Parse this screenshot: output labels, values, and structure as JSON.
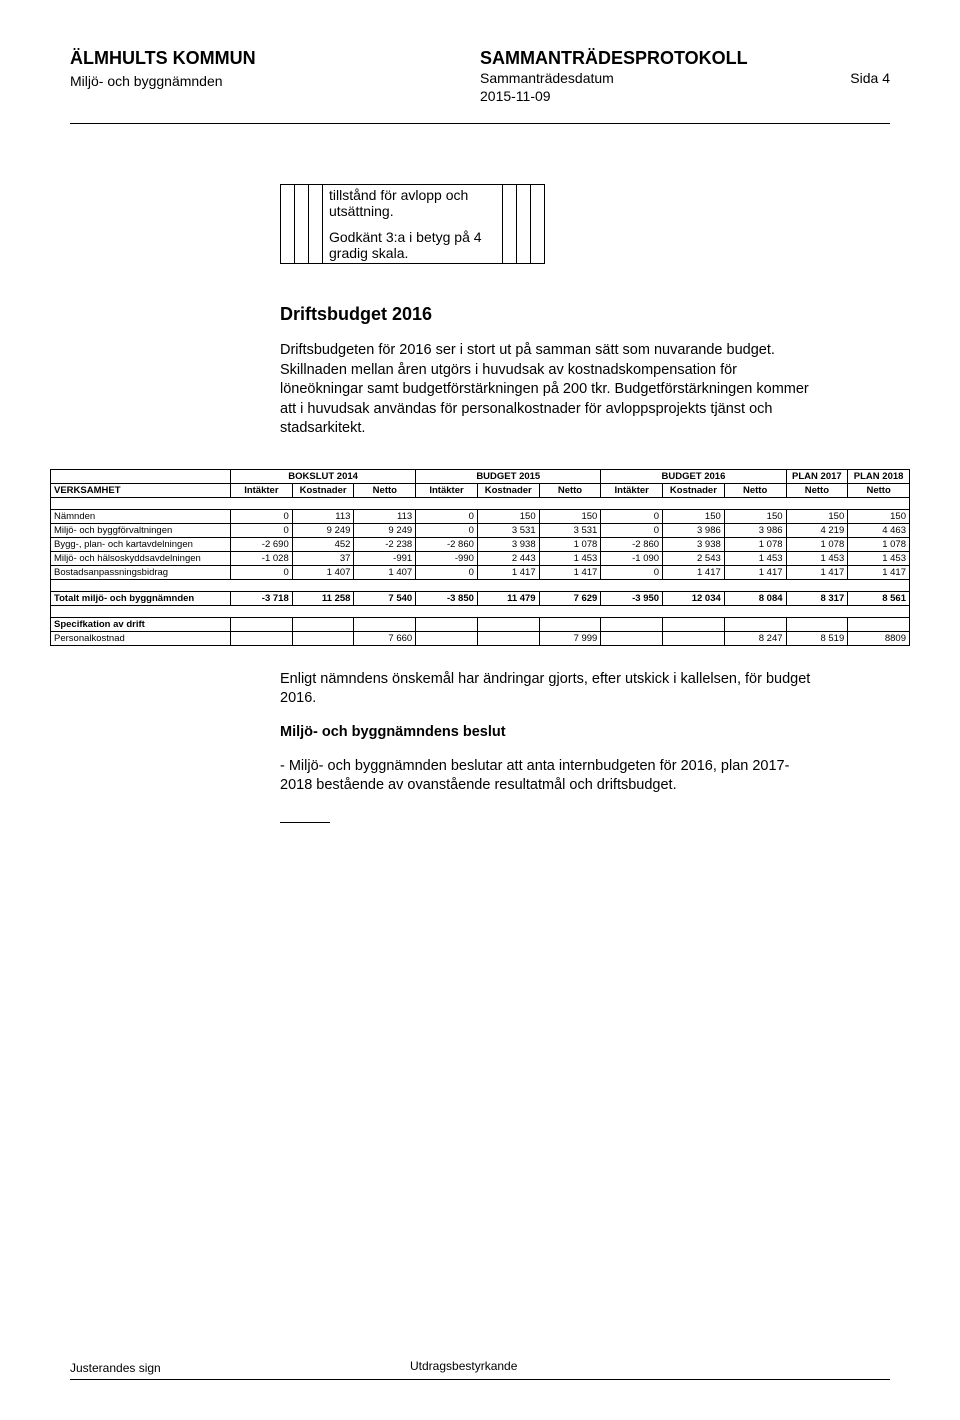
{
  "header": {
    "org": "ÄLMHULTS KOMMUN",
    "protokoll": "SAMMANTRÄDESPROTOKOLL",
    "sub": "Sammanträdesdatum",
    "sida_label": "Sida",
    "sida_num": "4",
    "committee": "Miljö- och byggnämnden",
    "date": "2015-11-09"
  },
  "mini": {
    "line1": "tillstånd för avlopp och utsättning.",
    "line2": "Godkänt 3:a i betyg på 4 gradig skala."
  },
  "section": {
    "title": "Driftsbudget 2016",
    "para": "Driftsbudgeten för 2016 ser i stort ut på samman sätt som nuvarande budget. Skillnaden mellan åren utgörs i huvudsak av kostnadskompensation för löneökningar samt budgetförstärkningen på 200 tkr. Budgetförstärkningen kommer att i huvudsak användas för personalkostnader för avloppsprojekts tjänst och stadsarkitekt."
  },
  "budget": {
    "group_headers": [
      "BOKSLUT 2014",
      "BUDGET 2015",
      "BUDGET 2016",
      "PLAN 2017",
      "PLAN 2018"
    ],
    "verksamhet": "VERKSAMHET",
    "sub_headers": [
      "Intäkter",
      "Kostnader",
      "Netto",
      "Intäkter",
      "Kostnader",
      "Netto",
      "Intäkter",
      "Kostnader",
      "Netto",
      "Netto",
      "Netto"
    ],
    "rows": [
      {
        "label": "Nämnden",
        "v": [
          "0",
          "113",
          "113",
          "0",
          "150",
          "150",
          "0",
          "150",
          "150",
          "150",
          "150"
        ]
      },
      {
        "label": "Miljö- och byggförvaltningen",
        "v": [
          "0",
          "9 249",
          "9 249",
          "0",
          "3 531",
          "3 531",
          "0",
          "3 986",
          "3 986",
          "4 219",
          "4 463"
        ]
      },
      {
        "label": "Bygg-, plan- och kartavdelningen",
        "v": [
          "-2 690",
          "452",
          "-2 238",
          "-2 860",
          "3 938",
          "1 078",
          "-2 860",
          "3 938",
          "1 078",
          "1 078",
          "1 078"
        ]
      },
      {
        "label": "Miljö- och hälsoskyddsavdelningen",
        "v": [
          "-1 028",
          "37",
          "-991",
          "-990",
          "2 443",
          "1 453",
          "-1 090",
          "2 543",
          "1 453",
          "1 453",
          "1 453"
        ]
      },
      {
        "label": "Bostadsanpassningsbidrag",
        "v": [
          "0",
          "1 407",
          "1 407",
          "0",
          "1 417",
          "1 417",
          "0",
          "1 417",
          "1 417",
          "1 417",
          "1 417"
        ]
      }
    ],
    "total": {
      "label": "Totalt miljö- och byggnämnden",
      "v": [
        "-3 718",
        "11 258",
        "7 540",
        "-3 850",
        "11 479",
        "7 629",
        "-3 950",
        "12 034",
        "8 084",
        "8 317",
        "8 561"
      ]
    },
    "spec_hdr": "Specifkation av drift",
    "pk": {
      "label": "Personalkostnad",
      "v": [
        "",
        "",
        "7 660",
        "",
        "",
        "7 999",
        "",
        "",
        "8 247",
        "8 519",
        "8809"
      ]
    }
  },
  "after": {
    "p1": "Enligt nämndens önskemål har ändringar gjorts, efter utskick i kallelsen, för budget 2016.",
    "h": "Miljö- och byggnämndens beslut",
    "p2": "- Miljö- och byggnämnden beslutar att anta internbudgeten för 2016, plan 2017-2018 bestående av ovanstående resultatmål och driftsbudget."
  },
  "footer": {
    "left": "Justerandes sign",
    "right": "Utdragsbestyrkande"
  },
  "colors": {
    "text": "#000000",
    "bg": "#ffffff",
    "border": "#000000"
  }
}
